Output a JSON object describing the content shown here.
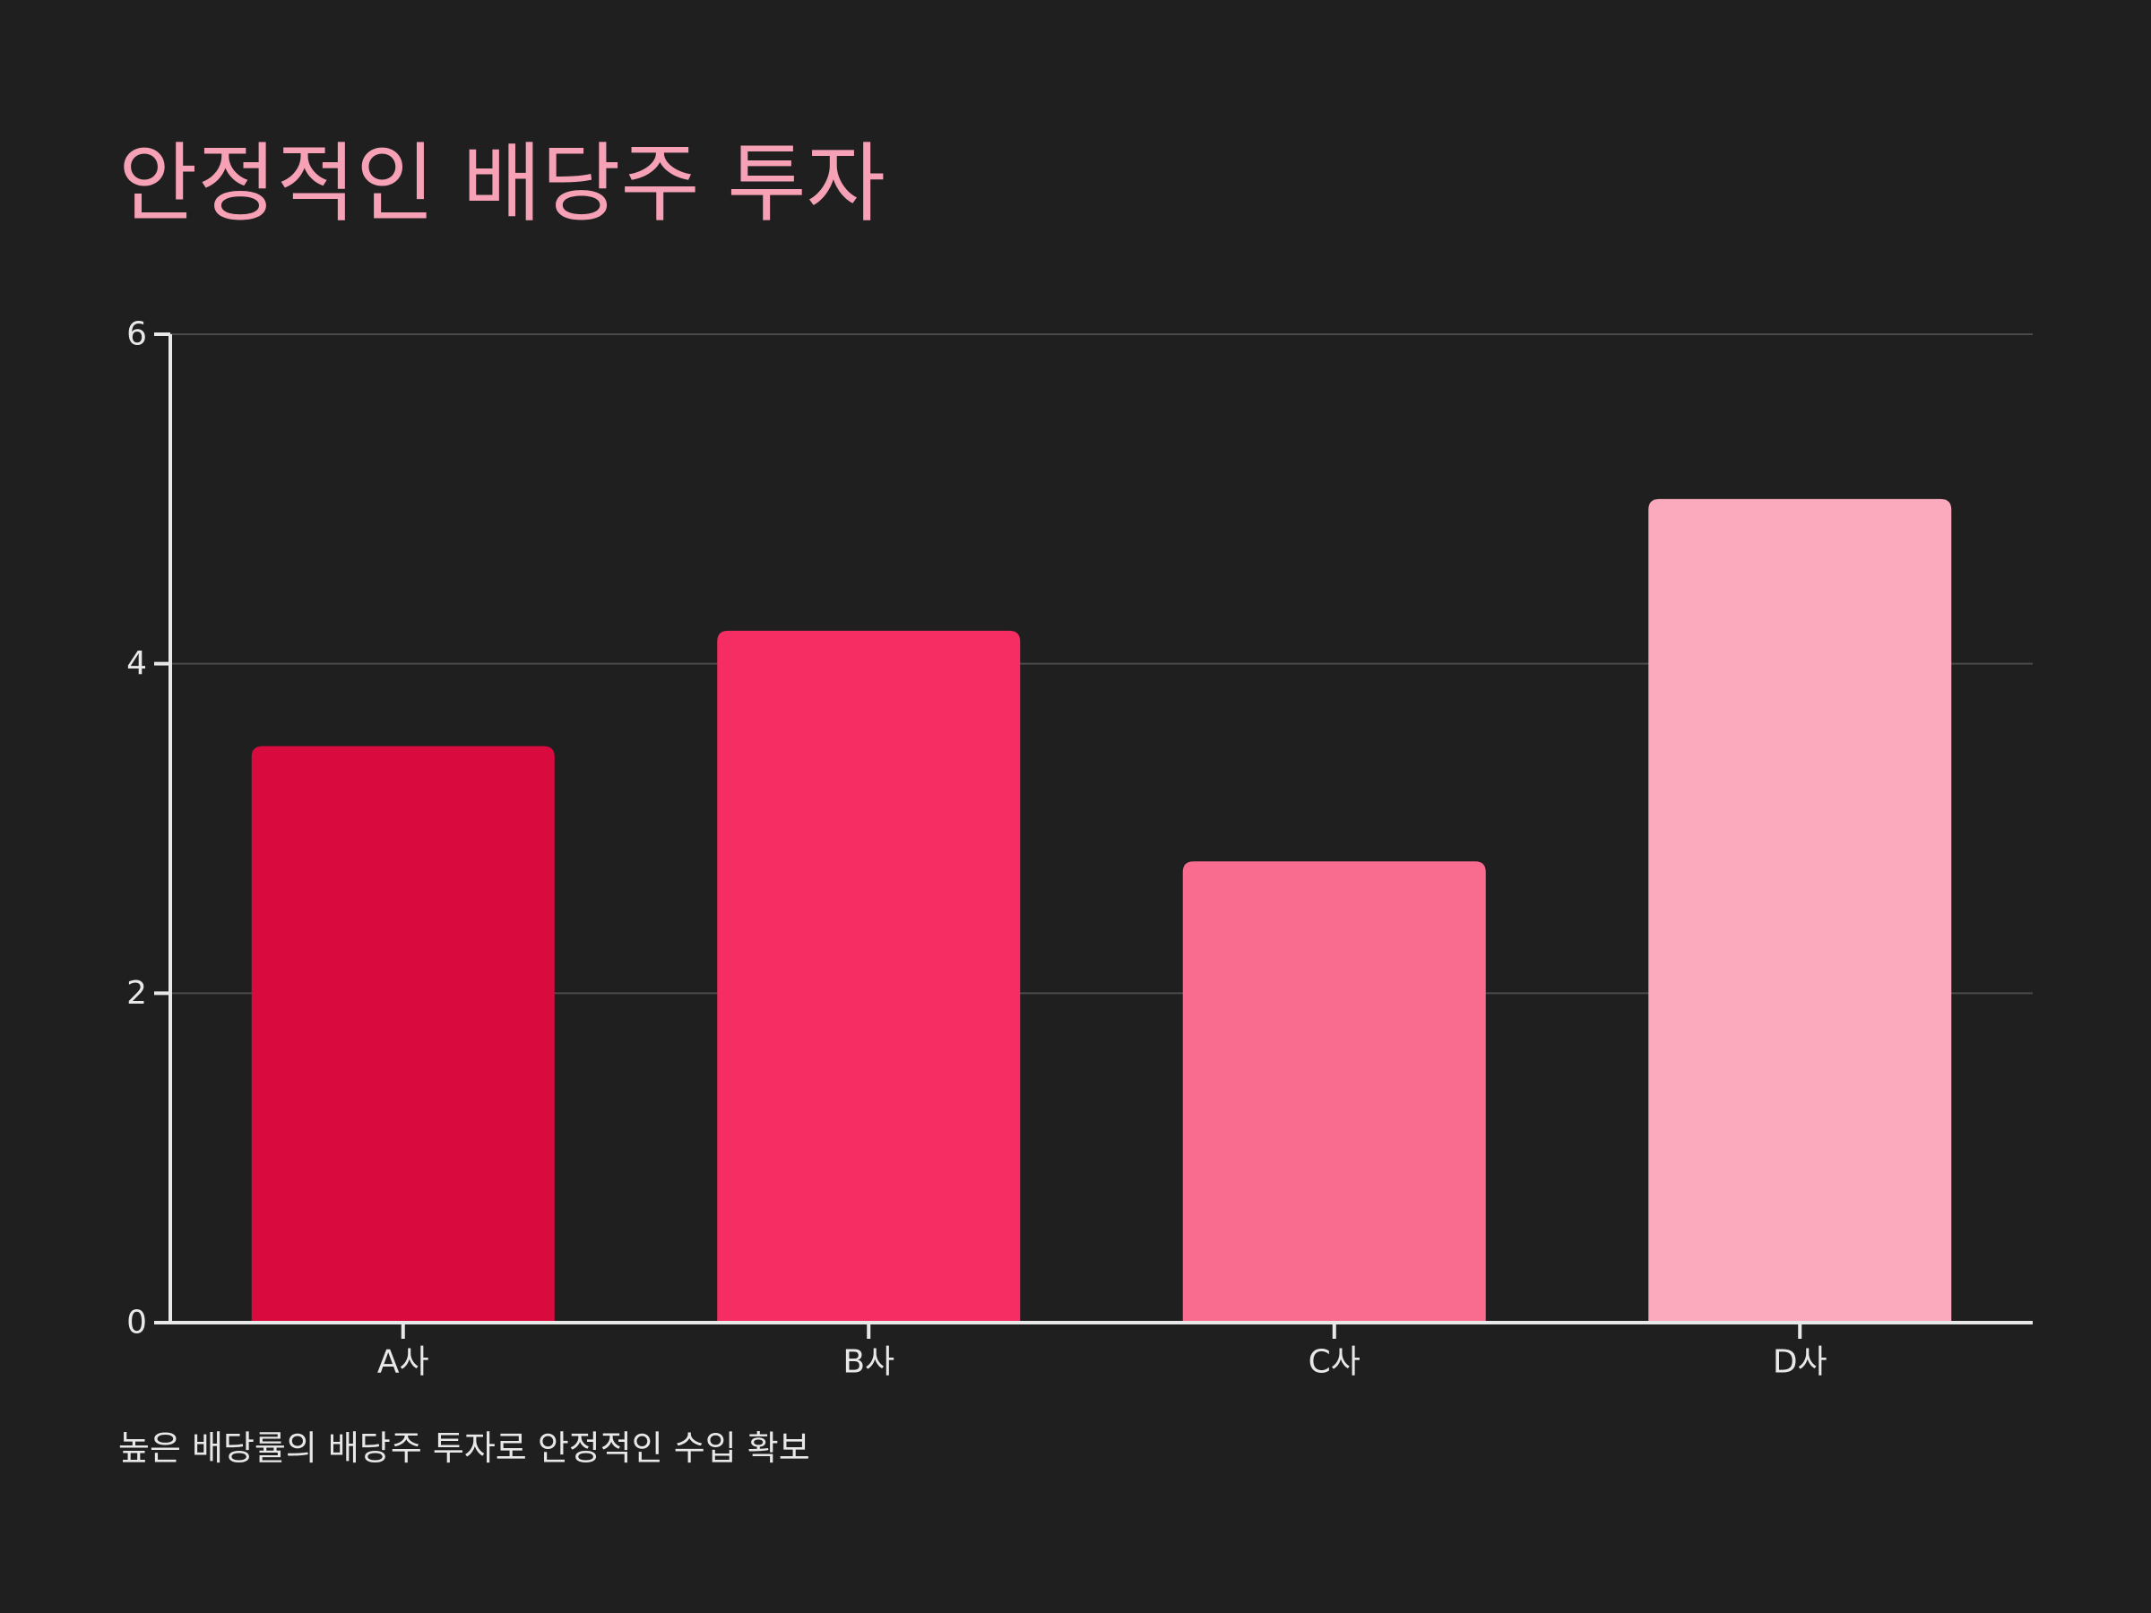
{
  "chart_data": {
    "type": "bar",
    "title": "안정적인 배당주 투자",
    "caption": "높은 배당률의 배당주 투자로 안정적인 수입 확보",
    "categories": [
      "A사",
      "B사",
      "C사",
      "D사"
    ],
    "values": [
      3.5,
      4.2,
      2.8,
      5.0
    ],
    "bar_colors": [
      "#d90a3d",
      "#f52d62",
      "#fa6c8f",
      "#fba9bc"
    ],
    "xlabel": "",
    "ylabel": "",
    "ylim": [
      0,
      6
    ],
    "yticks": [
      0,
      2,
      4,
      6
    ],
    "grid": true,
    "colors": {
      "background": "#1f1f1f",
      "title": "#f7a1b7",
      "axis": "#e8e8e8",
      "grid": "#4a4a4a",
      "text": "#e8e8e8"
    }
  }
}
